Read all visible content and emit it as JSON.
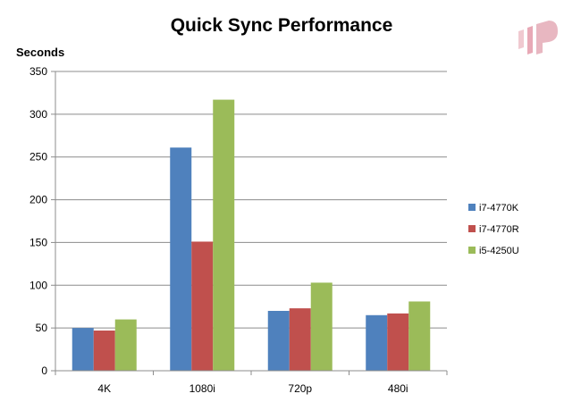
{
  "chart_data": {
    "type": "bar",
    "title": "Quick Sync Performance",
    "ylabel": "Seconds",
    "xlabel": "",
    "categories": [
      "4K",
      "1080i",
      "720p",
      "480i"
    ],
    "series": [
      {
        "name": "i7-4770K",
        "color": "#4f81bd",
        "values": [
          50,
          261,
          70,
          65
        ]
      },
      {
        "name": "i7-4770R",
        "color": "#c0504d",
        "values": [
          47,
          151,
          73,
          67
        ]
      },
      {
        "name": "i5-4250U",
        "color": "#9bbb59",
        "values": [
          60,
          317,
          103,
          81
        ]
      }
    ],
    "ylim": [
      0,
      350
    ],
    "yticks": [
      0,
      50,
      100,
      150,
      200,
      250,
      300,
      350
    ],
    "grid": true,
    "legend_position": "right"
  },
  "logo": {
    "name": "watermark-logo",
    "color": "#e8b7c1"
  }
}
